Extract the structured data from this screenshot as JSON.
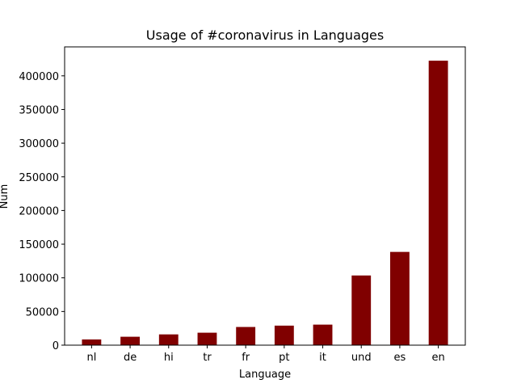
{
  "chart_data": {
    "type": "bar",
    "title": "Usage of #coronavirus in Languages",
    "xlabel": "Language",
    "ylabel": "Num",
    "categories": [
      "nl",
      "de",
      "hi",
      "tr",
      "fr",
      "pt",
      "it",
      "und",
      "es",
      "en"
    ],
    "values": [
      8500,
      12500,
      16000,
      18500,
      27000,
      29000,
      30500,
      103500,
      138500,
      422500
    ],
    "ylim": [
      0,
      443000
    ],
    "yticks": [
      0,
      50000,
      100000,
      150000,
      200000,
      250000,
      300000,
      350000,
      400000
    ],
    "ytick_labels": [
      "0",
      "50000",
      "100000",
      "150000",
      "200000",
      "250000",
      "300000",
      "350000",
      "400000"
    ],
    "bar_color": "#800000",
    "grid": false
  }
}
